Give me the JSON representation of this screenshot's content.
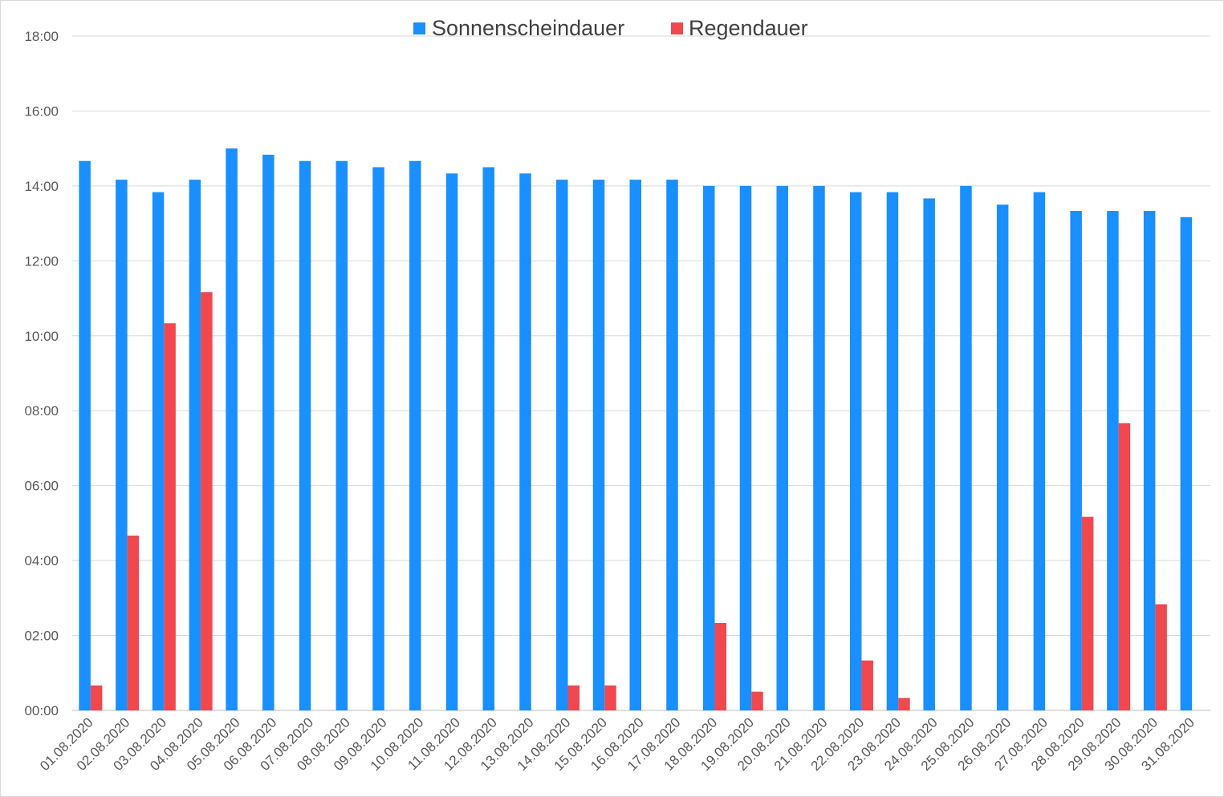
{
  "chart_data": {
    "type": "bar",
    "title": "",
    "xlabel": "",
    "ylabel": "",
    "ylim": [
      "00:00",
      "18:00"
    ],
    "y_ticks": [
      "00:00",
      "02:00",
      "04:00",
      "06:00",
      "08:00",
      "10:00",
      "12:00",
      "14:00",
      "16:00",
      "18:00"
    ],
    "grid": true,
    "legend_position": "top",
    "categories": [
      "01.08.2020",
      "02.08.2020",
      "03.08.2020",
      "04.08.2020",
      "05.08.2020",
      "06.08.2020",
      "07.08.2020",
      "08.08.2020",
      "09.08.2020",
      "10.08.2020",
      "11.08.2020",
      "12.08.2020",
      "13.08.2020",
      "14.08.2020",
      "15.08.2020",
      "16.08.2020",
      "17.08.2020",
      "18.08.2020",
      "19.08.2020",
      "20.08.2020",
      "21.08.2020",
      "22.08.2020",
      "23.08.2020",
      "24.08.2020",
      "25.08.2020",
      "26.08.2020",
      "27.08.2020",
      "28.08.2020",
      "29.08.2020",
      "30.08.2020",
      "31.08.2020"
    ],
    "series": [
      {
        "name": "Sonnenscheindauer",
        "color": "#1a8fff",
        "values": [
          "14:40",
          "14:10",
          "13:50",
          "14:10",
          "15:00",
          "14:50",
          "14:40",
          "14:40",
          "14:30",
          "14:40",
          "14:20",
          "14:30",
          "14:20",
          "14:10",
          "14:10",
          "14:10",
          "14:10",
          "14:00",
          "14:00",
          "14:00",
          "14:00",
          "13:50",
          "13:50",
          "13:40",
          "14:00",
          "13:30",
          "13:50",
          "13:20",
          "13:20",
          "13:20",
          "13:10"
        ]
      },
      {
        "name": "Regendauer",
        "color": "#f0484e",
        "values": [
          "00:40",
          "04:40",
          "10:20",
          "11:10",
          "00:00",
          "00:00",
          "00:00",
          "00:00",
          "00:00",
          "00:00",
          "00:00",
          "00:00",
          "00:00",
          "00:40",
          "00:40",
          "00:00",
          "00:00",
          "02:20",
          "00:30",
          "00:00",
          "00:00",
          "01:20",
          "00:20",
          "00:00",
          "00:00",
          "00:00",
          "00:00",
          "05:10",
          "07:40",
          "02:50",
          "00:00"
        ]
      }
    ]
  }
}
